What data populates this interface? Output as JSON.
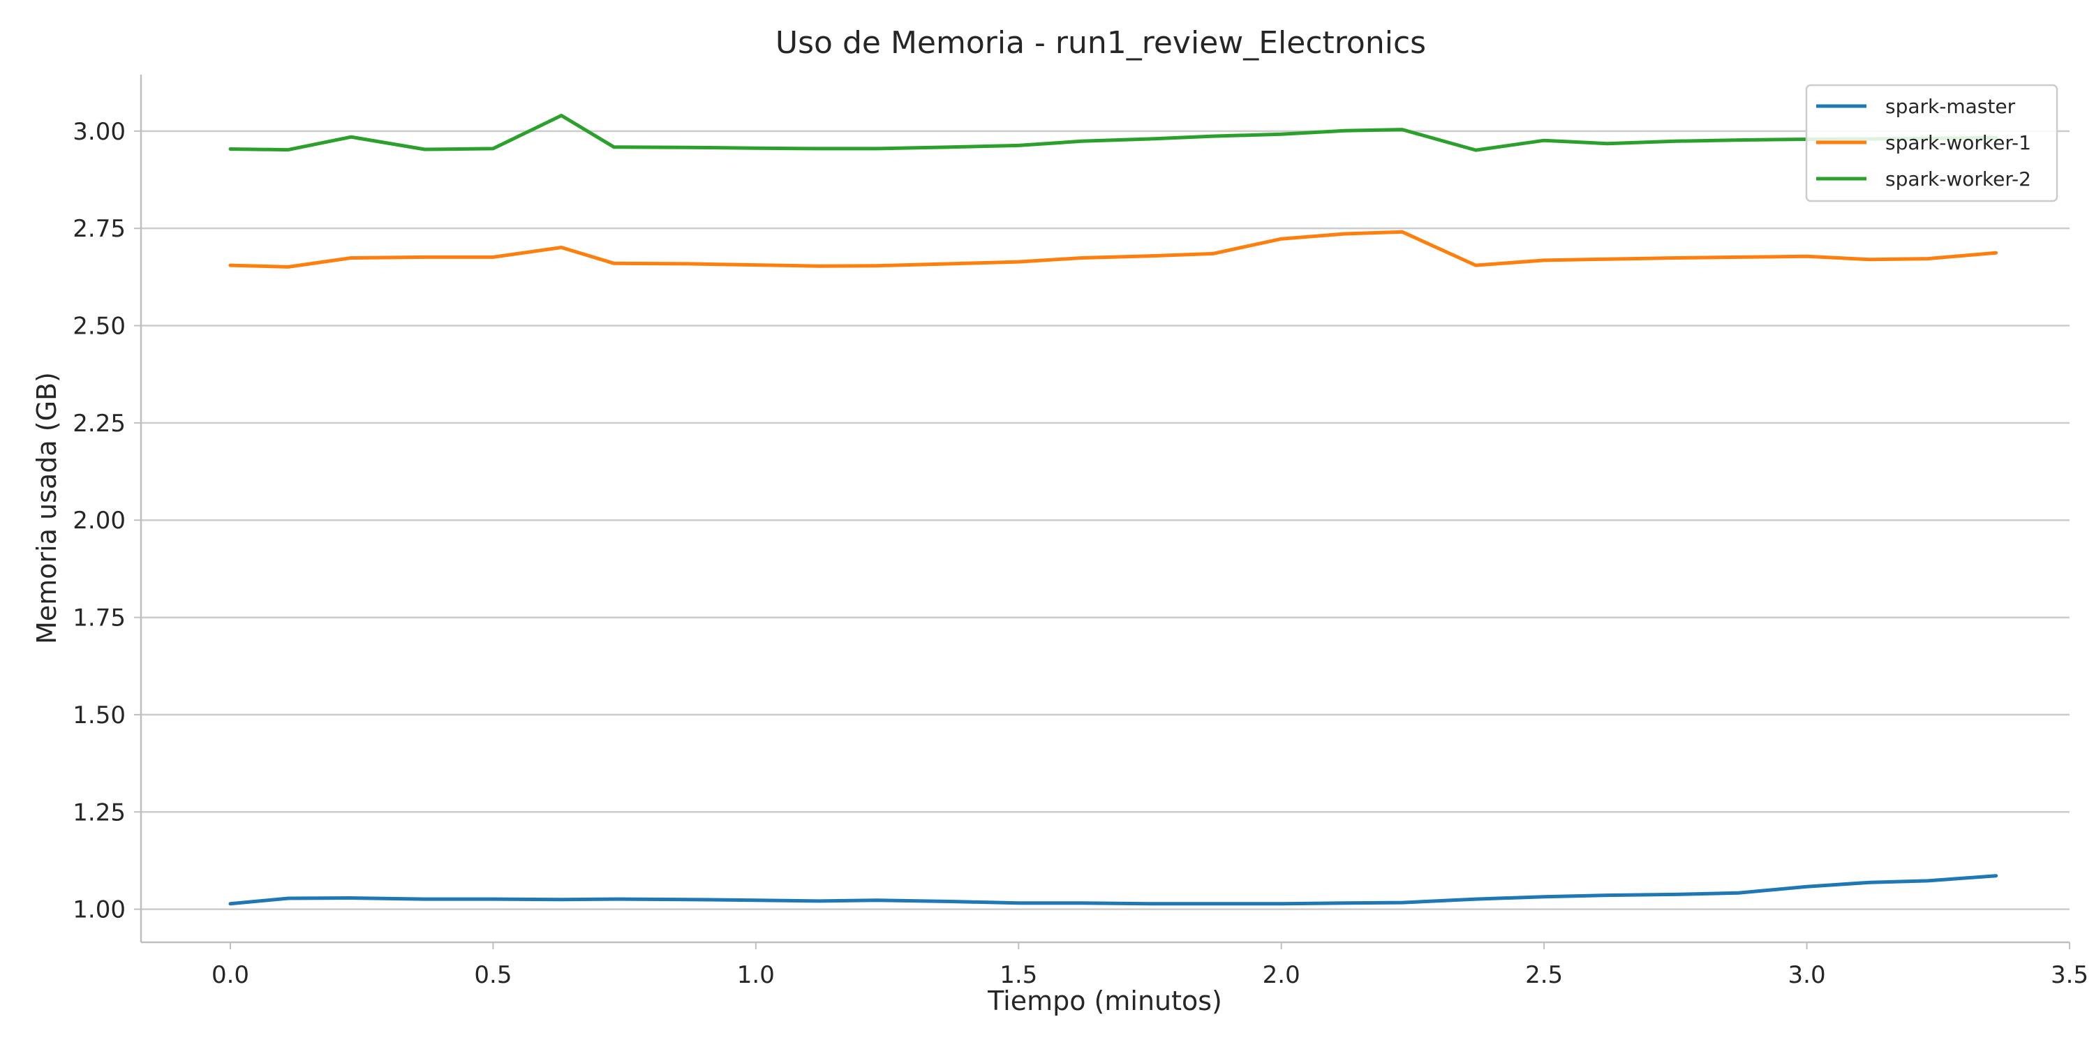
{
  "chart_data": {
    "type": "line",
    "title": "Uso de Memoria - run1_review_Electronics",
    "xlabel": "Tiempo (minutos)",
    "ylabel": "Memoria usada (GB)",
    "xlim": [
      -0.17,
      3.5
    ],
    "ylim": [
      0.915,
      3.145
    ],
    "xticks": [
      0.0,
      0.5,
      1.0,
      1.5,
      2.0,
      2.5,
      3.0,
      3.5
    ],
    "xtick_labels": [
      "0.0",
      "0.5",
      "1.0",
      "1.5",
      "2.0",
      "2.5",
      "3.0",
      "3.5"
    ],
    "yticks": [
      1.0,
      1.25,
      1.5,
      1.75,
      2.0,
      2.25,
      2.5,
      2.75,
      3.0
    ],
    "ytick_labels": [
      "1.00",
      "1.25",
      "1.50",
      "1.75",
      "2.00",
      "2.25",
      "2.50",
      "2.75",
      "3.00"
    ],
    "grid": true,
    "legend_position": "top-right",
    "x": [
      0.0,
      0.11,
      0.23,
      0.37,
      0.5,
      0.63,
      0.73,
      0.87,
      1.0,
      1.12,
      1.23,
      1.37,
      1.5,
      1.62,
      1.75,
      1.87,
      2.0,
      2.12,
      2.23,
      2.37,
      2.5,
      2.62,
      2.75,
      2.87,
      3.0,
      3.12,
      3.23,
      3.36
    ],
    "series": [
      {
        "name": "spark-master",
        "color": "#1f77b4",
        "values": [
          1.014,
          1.028,
          1.029,
          1.026,
          1.026,
          1.025,
          1.026,
          1.025,
          1.023,
          1.021,
          1.023,
          1.02,
          1.016,
          1.016,
          1.014,
          1.014,
          1.014,
          1.016,
          1.017,
          1.026,
          1.032,
          1.036,
          1.038,
          1.042,
          1.058,
          1.069,
          1.073,
          1.086
        ]
      },
      {
        "name": "spark-worker-1",
        "color": "#ff7f0e",
        "values": [
          2.655,
          2.651,
          2.674,
          2.676,
          2.676,
          2.701,
          2.66,
          2.659,
          2.656,
          2.653,
          2.654,
          2.659,
          2.664,
          2.674,
          2.679,
          2.685,
          2.723,
          2.736,
          2.741,
          2.655,
          2.668,
          2.671,
          2.674,
          2.676,
          2.678,
          2.67,
          2.672,
          2.687
        ]
      },
      {
        "name": "spark-worker-2",
        "color": "#2ca02c",
        "values": [
          2.954,
          2.952,
          2.985,
          2.953,
          2.955,
          3.04,
          2.959,
          2.958,
          2.956,
          2.955,
          2.955,
          2.959,
          2.963,
          2.974,
          2.98,
          2.987,
          2.992,
          3.001,
          3.004,
          2.951,
          2.976,
          2.968,
          2.974,
          2.977,
          2.979,
          2.98,
          2.981,
          2.983
        ]
      }
    ]
  }
}
